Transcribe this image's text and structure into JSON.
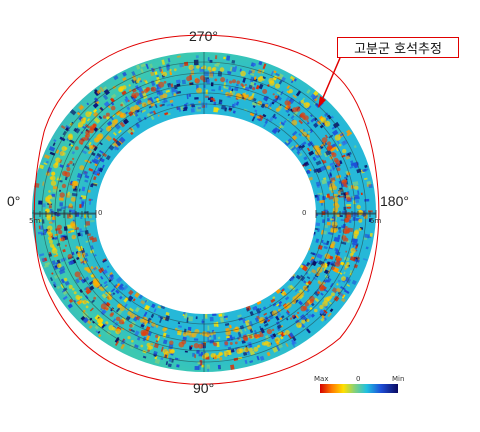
{
  "labels": {
    "angle_top": "270°",
    "angle_bottom": "90°",
    "angle_left": "0°",
    "angle_right": "180°"
  },
  "callout": {
    "text": "고분군 호석추정"
  },
  "scale": {
    "left_outer": "5m",
    "left_inner": "0",
    "right_inner": "0",
    "right_outer": "5m"
  },
  "legend": {
    "max_label": "Max",
    "mid_label": "0",
    "min_label": "Min",
    "colors": [
      "#d40000",
      "#ff7a00",
      "#ffe000",
      "#7fd07f",
      "#20c0e0",
      "#1e4fd8",
      "#0a0a60"
    ]
  }
}
